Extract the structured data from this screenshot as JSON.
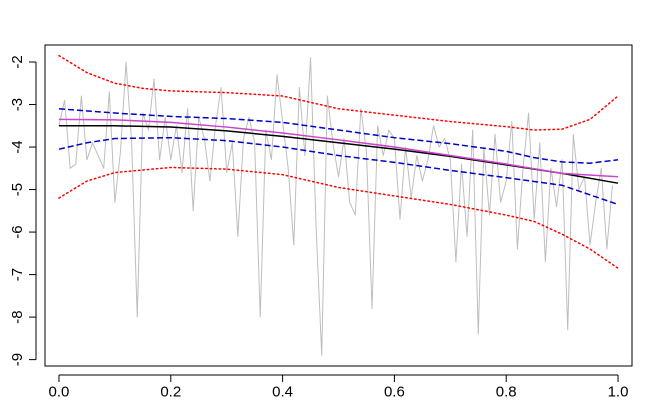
{
  "chart_data": {
    "type": "line",
    "title": "",
    "xlabel": "",
    "ylabel": "",
    "xlim": [
      -0.025,
      1.025
    ],
    "ylim": [
      -9.15,
      -1.6
    ],
    "xticks": [
      0.0,
      0.2,
      0.4,
      0.6,
      0.8,
      1.0
    ],
    "xtick_labels": [
      "0.0",
      "0.2",
      "0.4",
      "0.6",
      "0.8",
      "1.0"
    ],
    "yticks": [
      -9,
      -8,
      -7,
      -6,
      -5,
      -4,
      -3,
      -2
    ],
    "ytick_labels": [
      "-9",
      "-8",
      "-7",
      "-6",
      "-5",
      "-4",
      "-3",
      "-2"
    ],
    "grid": false,
    "legend": "none",
    "series": [
      {
        "style": "solid",
        "color": "#bebebe",
        "kind": "raw",
        "x": [
          0.0,
          0.01,
          0.02,
          0.03,
          0.04,
          0.05,
          0.06,
          0.07,
          0.08,
          0.09,
          0.1,
          0.11,
          0.12,
          0.13,
          0.14,
          0.15,
          0.16,
          0.17,
          0.18,
          0.19,
          0.2,
          0.21,
          0.22,
          0.23,
          0.24,
          0.25,
          0.26,
          0.27,
          0.28,
          0.29,
          0.3,
          0.31,
          0.32,
          0.33,
          0.34,
          0.35,
          0.36,
          0.37,
          0.38,
          0.39,
          0.4,
          0.41,
          0.42,
          0.43,
          0.44,
          0.45,
          0.46,
          0.47,
          0.48,
          0.49,
          0.5,
          0.51,
          0.52,
          0.53,
          0.54,
          0.55,
          0.56,
          0.57,
          0.58,
          0.59,
          0.6,
          0.61,
          0.62,
          0.63,
          0.64,
          0.65,
          0.66,
          0.67,
          0.68,
          0.69,
          0.7,
          0.71,
          0.72,
          0.73,
          0.74,
          0.75,
          0.76,
          0.77,
          0.78,
          0.79,
          0.8,
          0.81,
          0.82,
          0.83,
          0.84,
          0.85,
          0.86,
          0.87,
          0.88,
          0.89,
          0.9,
          0.91,
          0.92,
          0.93,
          0.94,
          0.95,
          0.96,
          0.97,
          0.98,
          0.99
        ],
        "y": [
          -3.5,
          -2.9,
          -4.5,
          -4.4,
          -2.8,
          -4.3,
          -3.9,
          -4.2,
          -4.5,
          -2.7,
          -5.3,
          -4.1,
          -2.0,
          -3.9,
          -8.0,
          -3.2,
          -3.6,
          -2.4,
          -4.3,
          -3.3,
          -4.3,
          -3.5,
          -4.6,
          -3.1,
          -5.5,
          -3.3,
          -3.8,
          -4.8,
          -3.5,
          -2.6,
          -4.6,
          -3.9,
          -6.1,
          -3.8,
          -3.3,
          -3.9,
          -8.0,
          -3.6,
          -4.3,
          -2.3,
          -3.4,
          -4.5,
          -6.3,
          -2.6,
          -4.2,
          -1.9,
          -5.9,
          -8.9,
          -2.8,
          -3.9,
          -4.7,
          -3.8,
          -5.3,
          -5.6,
          -3.1,
          -4.1,
          -7.8,
          -3.5,
          -4.2,
          -3.6,
          -3.8,
          -5.7,
          -4.0,
          -5.2,
          -4.2,
          -4.8,
          -4.3,
          -3.5,
          -4.0,
          -3.8,
          -4.3,
          -6.7,
          -4.4,
          -6.1,
          -3.6,
          -8.4,
          -4.0,
          -5.6,
          -3.7,
          -5.3,
          -4.8,
          -3.4,
          -6.4,
          -4.5,
          -3.2,
          -5.7,
          -3.9,
          -6.7,
          -4.5,
          -5.4,
          -4.3,
          -8.3,
          -3.7,
          -5.0,
          -4.7,
          -6.3,
          -5.3,
          -4.5,
          -6.4,
          -4.9
        ]
      },
      {
        "style": "solid",
        "color": "#000000",
        "kind": "fit",
        "x": [
          0.0,
          0.1,
          0.2,
          0.3,
          0.4,
          0.5,
          0.6,
          0.7,
          0.8,
          0.9,
          1.0
        ],
        "y": [
          -3.5,
          -3.5,
          -3.53,
          -3.62,
          -3.75,
          -3.9,
          -4.05,
          -4.22,
          -4.42,
          -4.62,
          -4.85
        ]
      },
      {
        "style": "solid",
        "color": "#cc44cc",
        "kind": "fit2",
        "x": [
          0.0,
          0.1,
          0.2,
          0.3,
          0.4,
          0.5,
          0.6,
          0.7,
          0.8,
          0.9,
          1.0
        ],
        "y": [
          -3.35,
          -3.36,
          -3.42,
          -3.53,
          -3.67,
          -3.83,
          -4.0,
          -4.2,
          -4.4,
          -4.62,
          -4.7
        ]
      },
      {
        "style": "dashed",
        "color": "#0000cc",
        "kind": "band-upper",
        "x": [
          0.0,
          0.1,
          0.2,
          0.3,
          0.4,
          0.5,
          0.6,
          0.7,
          0.8,
          0.85,
          0.9,
          0.95,
          1.0
        ],
        "y": [
          -3.1,
          -3.2,
          -3.28,
          -3.33,
          -3.42,
          -3.6,
          -3.78,
          -3.92,
          -4.1,
          -4.25,
          -4.35,
          -4.38,
          -4.3
        ]
      },
      {
        "style": "dashed",
        "color": "#0000cc",
        "kind": "band-lower",
        "x": [
          0.0,
          0.05,
          0.1,
          0.2,
          0.3,
          0.4,
          0.5,
          0.6,
          0.7,
          0.8,
          0.9,
          1.0
        ],
        "y": [
          -4.05,
          -3.9,
          -3.8,
          -3.78,
          -3.85,
          -4.0,
          -4.2,
          -4.36,
          -4.55,
          -4.72,
          -4.9,
          -5.35
        ]
      },
      {
        "style": "dotted",
        "color": "#ff0000",
        "kind": "outer-upper",
        "x": [
          0.0,
          0.05,
          0.1,
          0.15,
          0.2,
          0.3,
          0.4,
          0.5,
          0.6,
          0.7,
          0.8,
          0.85,
          0.9,
          0.95,
          1.0
        ],
        "y": [
          -1.85,
          -2.25,
          -2.5,
          -2.62,
          -2.68,
          -2.72,
          -2.8,
          -3.1,
          -3.25,
          -3.4,
          -3.52,
          -3.6,
          -3.58,
          -3.35,
          -2.8
        ]
      },
      {
        "style": "dotted",
        "color": "#ff0000",
        "kind": "outer-lower",
        "x": [
          0.0,
          0.05,
          0.1,
          0.2,
          0.3,
          0.4,
          0.5,
          0.6,
          0.7,
          0.8,
          0.85,
          0.9,
          0.95,
          1.0
        ],
        "y": [
          -5.2,
          -4.8,
          -4.6,
          -4.48,
          -4.52,
          -4.65,
          -4.95,
          -5.15,
          -5.35,
          -5.6,
          -5.75,
          -6.05,
          -6.4,
          -6.85
        ]
      }
    ]
  }
}
